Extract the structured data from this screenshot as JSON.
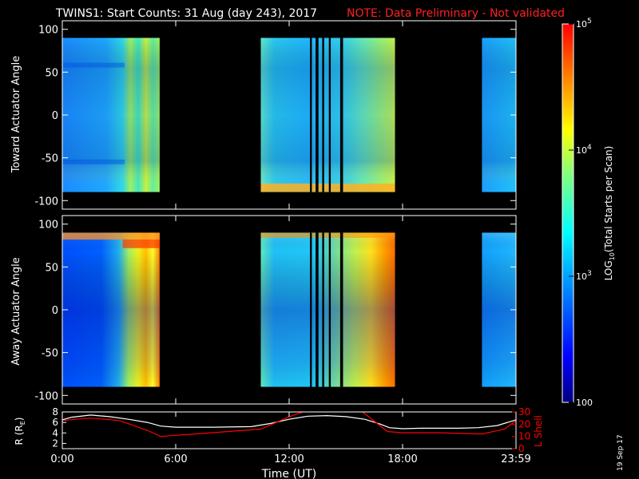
{
  "chart_data": [
    {
      "type": "heatmap",
      "title": "TWINS1: Start Counts: 31 Aug (day 243), 2017",
      "note": "NOTE: Data Preliminary - Not validated",
      "ylabel": "Toward Actuator Angle",
      "ylim": [
        -110,
        110
      ],
      "yticks": [
        -100,
        -50,
        0,
        50,
        100
      ],
      "xlim_hours": [
        0,
        24
      ],
      "xticks_hours": [
        0,
        6,
        12,
        18,
        24
      ],
      "data_segments_hours": [
        [
          0,
          5.15
        ],
        [
          10.5,
          17.6
        ],
        [
          22.2,
          24
        ]
      ],
      "black_gaps_hours": [
        [
          13.1,
          13.2
        ],
        [
          13.4,
          13.55
        ],
        [
          13.75,
          13.85
        ],
        [
          14.1,
          14.2
        ],
        [
          14.7,
          14.85
        ]
      ],
      "angle_range": [
        -90,
        90
      ]
    },
    {
      "type": "heatmap",
      "ylabel": "Away Actuator Angle",
      "ylim": [
        -110,
        110
      ],
      "yticks": [
        -100,
        -50,
        0,
        50,
        100
      ],
      "xlim_hours": [
        0,
        24
      ],
      "xticks_hours": [
        0,
        6,
        12,
        18,
        24
      ],
      "data_segments_hours": [
        [
          0,
          5.15
        ],
        [
          10.5,
          17.6
        ],
        [
          22.2,
          24
        ]
      ],
      "black_gaps_hours": [
        [
          13.1,
          13.2
        ],
        [
          13.4,
          13.55
        ],
        [
          13.75,
          13.85
        ],
        [
          14.1,
          14.2
        ],
        [
          14.7,
          14.85
        ]
      ],
      "angle_range": [
        -90,
        90
      ]
    },
    {
      "type": "line",
      "xlabel": "Time (UT)",
      "xticks_labels": [
        "0:00",
        "6:00",
        "12:00",
        "18:00",
        "23:59"
      ],
      "xticks_hours": [
        0,
        6,
        12,
        18,
        24
      ],
      "ylabel_left": "R (RE)",
      "ylabel_left_sub": "E",
      "ylim_left": [
        1,
        8
      ],
      "yticks_left": [
        2,
        4,
        6,
        8
      ],
      "ylabel_right": "L Shell",
      "ylim_right": [
        0,
        30
      ],
      "yticks_right": [
        0,
        10,
        20,
        30
      ],
      "series": [
        {
          "name": "R",
          "color": "#ffffff",
          "axis": "left",
          "x": [
            0,
            0.5,
            1.5,
            2.5,
            3.5,
            4.5,
            5.2,
            6,
            8,
            10,
            11,
            12,
            13,
            14,
            15,
            16,
            16.8,
            17.3,
            18,
            19,
            20,
            21,
            22,
            23,
            24
          ],
          "y": [
            6.5,
            7.0,
            7.4,
            7.1,
            6.6,
            6.0,
            5.3,
            5.1,
            5.1,
            5.2,
            5.8,
            6.6,
            7.2,
            7.3,
            7.1,
            6.6,
            5.7,
            5.0,
            4.8,
            4.9,
            4.9,
            4.9,
            5.0,
            5.4,
            6.5
          ]
        },
        {
          "name": "L Shell",
          "color": "#ff0000",
          "axis": "right",
          "x": [
            0,
            1.5,
            3,
            4.5,
            5.2,
            7,
            10.5,
            12,
            12.9,
            15.8,
            17.2,
            18,
            20,
            22.2,
            23.4,
            24
          ],
          "y": [
            23,
            25,
            23,
            15,
            10,
            12,
            16,
            26,
            31,
            31,
            14,
            13,
            13,
            12,
            16,
            23
          ]
        }
      ]
    }
  ],
  "colorbar": {
    "label": "LOG10(Total Starts per Scan)",
    "label_main": "LOG",
    "label_sub": "10",
    "label_rest": "(Total Starts per Scan)",
    "ticks": [
      {
        "value": 100,
        "base": "100",
        "exp": ""
      },
      {
        "value": 1000,
        "base": "10",
        "exp": "3"
      },
      {
        "value": 10000,
        "base": "10",
        "exp": "4"
      },
      {
        "value": 100000,
        "base": "10",
        "exp": "5"
      }
    ],
    "range": [
      100,
      100000
    ],
    "colors": [
      "#000080",
      "#0000ff",
      "#00a0ff",
      "#00ffff",
      "#80ff80",
      "#ffff00",
      "#ff8000",
      "#ff0000"
    ]
  },
  "date_stamp": "19 Sep 17"
}
